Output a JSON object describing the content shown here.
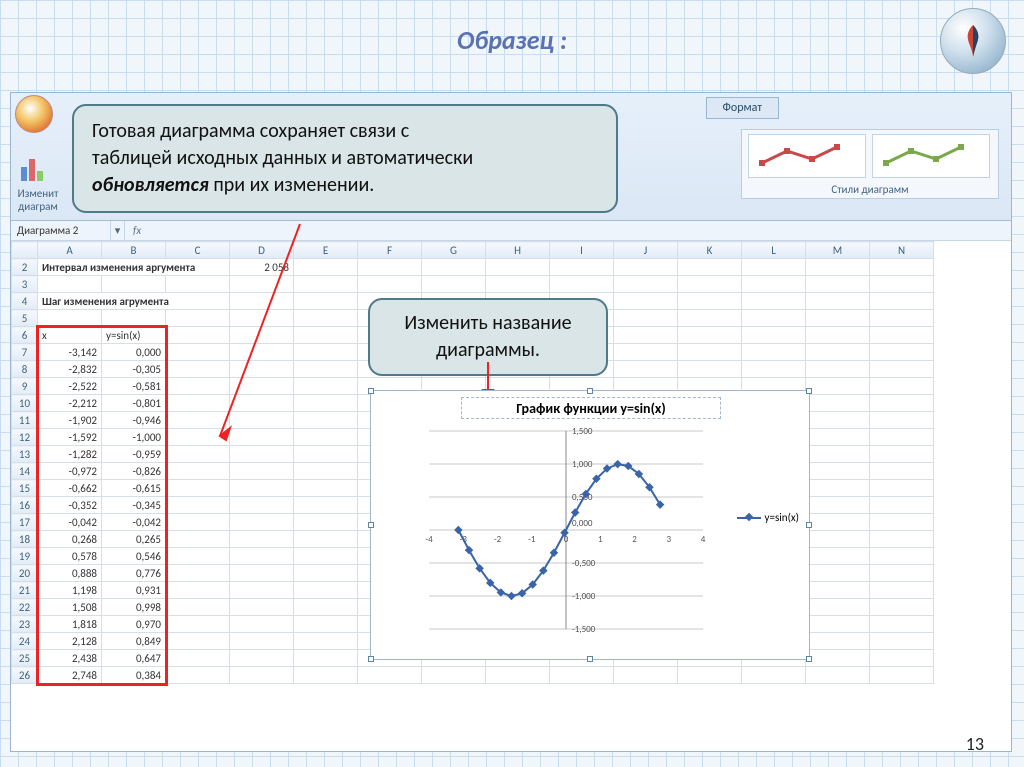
{
  "page": {
    "title": "Образец :",
    "number": "13"
  },
  "callouts": {
    "main_line1": "Готовая диаграмма сохраняет связи с",
    "main_line2": "таблицей исходных данных и автоматически",
    "main_line3_bold": "обновляется",
    "main_line3_rest": " при их изменении.",
    "chart_title_hint_l1": "Изменить название",
    "chart_title_hint_l2": "диаграммы."
  },
  "ribbon": {
    "change_type_l1": "Изменит",
    "change_type_l2": "диаграм",
    "name_box": "Диаграмма 2",
    "format_tab": "Формат",
    "styles_caption": "Стили диаграмм",
    "style_colors": {
      "red": "#c94848",
      "green": "#7aa84a"
    }
  },
  "sheet": {
    "columns": [
      "A",
      "B",
      "C",
      "D",
      "E",
      "F",
      "G",
      "H",
      "I",
      "J",
      "K",
      "L",
      "M",
      "N"
    ],
    "label_interval": "Интервал изменения аргумента",
    "label_step": "Шаг изменения агрумента",
    "hdr_x": "x",
    "hdr_y": "y=sin(x)",
    "e2_value": "2 058",
    "rows": [
      {
        "n": 2
      },
      {
        "n": 3
      },
      {
        "n": 4
      },
      {
        "n": 5
      },
      {
        "n": 6
      },
      {
        "n": 7,
        "x": "-3,142",
        "y": "0,000"
      },
      {
        "n": 8,
        "x": "-2,832",
        "y": "-0,305"
      },
      {
        "n": 9,
        "x": "-2,522",
        "y": "-0,581"
      },
      {
        "n": 10,
        "x": "-2,212",
        "y": "-0,801"
      },
      {
        "n": 11,
        "x": "-1,902",
        "y": "-0,946"
      },
      {
        "n": 12,
        "x": "-1,592",
        "y": "-1,000"
      },
      {
        "n": 13,
        "x": "-1,282",
        "y": "-0,959"
      },
      {
        "n": 14,
        "x": "-0,972",
        "y": "-0,826"
      },
      {
        "n": 15,
        "x": "-0,662",
        "y": "-0,615"
      },
      {
        "n": 16,
        "x": "-0,352",
        "y": "-0,345"
      },
      {
        "n": 17,
        "x": "-0,042",
        "y": "-0,042"
      },
      {
        "n": 18,
        "x": "0,268",
        "y": "0,265"
      },
      {
        "n": 19,
        "x": "0,578",
        "y": "0,546"
      },
      {
        "n": 20,
        "x": "0,888",
        "y": "0,776"
      },
      {
        "n": 21,
        "x": "1,198",
        "y": "0,931"
      },
      {
        "n": 22,
        "x": "1,508",
        "y": "0,998"
      },
      {
        "n": 23,
        "x": "1,818",
        "y": "0,970"
      },
      {
        "n": 24,
        "x": "2,128",
        "y": "0,849"
      },
      {
        "n": 25,
        "x": "2,438",
        "y": "0,647"
      },
      {
        "n": 26,
        "x": "2,748",
        "y": "0,384"
      }
    ]
  },
  "chart": {
    "title": "График функции y=sin(x)",
    "legend": "y=sin(x)",
    "series_color": "#3a64a8",
    "grid_color": "#c9c9c9",
    "axis_color": "#888888",
    "xticks": [
      "-4",
      "-3",
      "-2",
      "-1",
      "0",
      "1",
      "2",
      "3",
      "4"
    ],
    "yticks": [
      "1,500",
      "1,000",
      "0,500",
      "0,000",
      "-0,500",
      "-1,000",
      "-1,500"
    ],
    "xlim": [
      -4,
      4
    ],
    "ylim": [
      -1.5,
      1.5
    ],
    "points": [
      [
        -3.142,
        0.0
      ],
      [
        -2.832,
        -0.305
      ],
      [
        -2.522,
        -0.581
      ],
      [
        -2.212,
        -0.801
      ],
      [
        -1.902,
        -0.946
      ],
      [
        -1.592,
        -1.0
      ],
      [
        -1.282,
        -0.959
      ],
      [
        -0.972,
        -0.826
      ],
      [
        -0.662,
        -0.615
      ],
      [
        -0.352,
        -0.345
      ],
      [
        -0.042,
        -0.042
      ],
      [
        0.268,
        0.265
      ],
      [
        0.578,
        0.546
      ],
      [
        0.888,
        0.776
      ],
      [
        1.198,
        0.931
      ],
      [
        1.508,
        0.998
      ],
      [
        1.818,
        0.97
      ],
      [
        2.128,
        0.849
      ],
      [
        2.438,
        0.647
      ],
      [
        2.748,
        0.384
      ]
    ]
  }
}
